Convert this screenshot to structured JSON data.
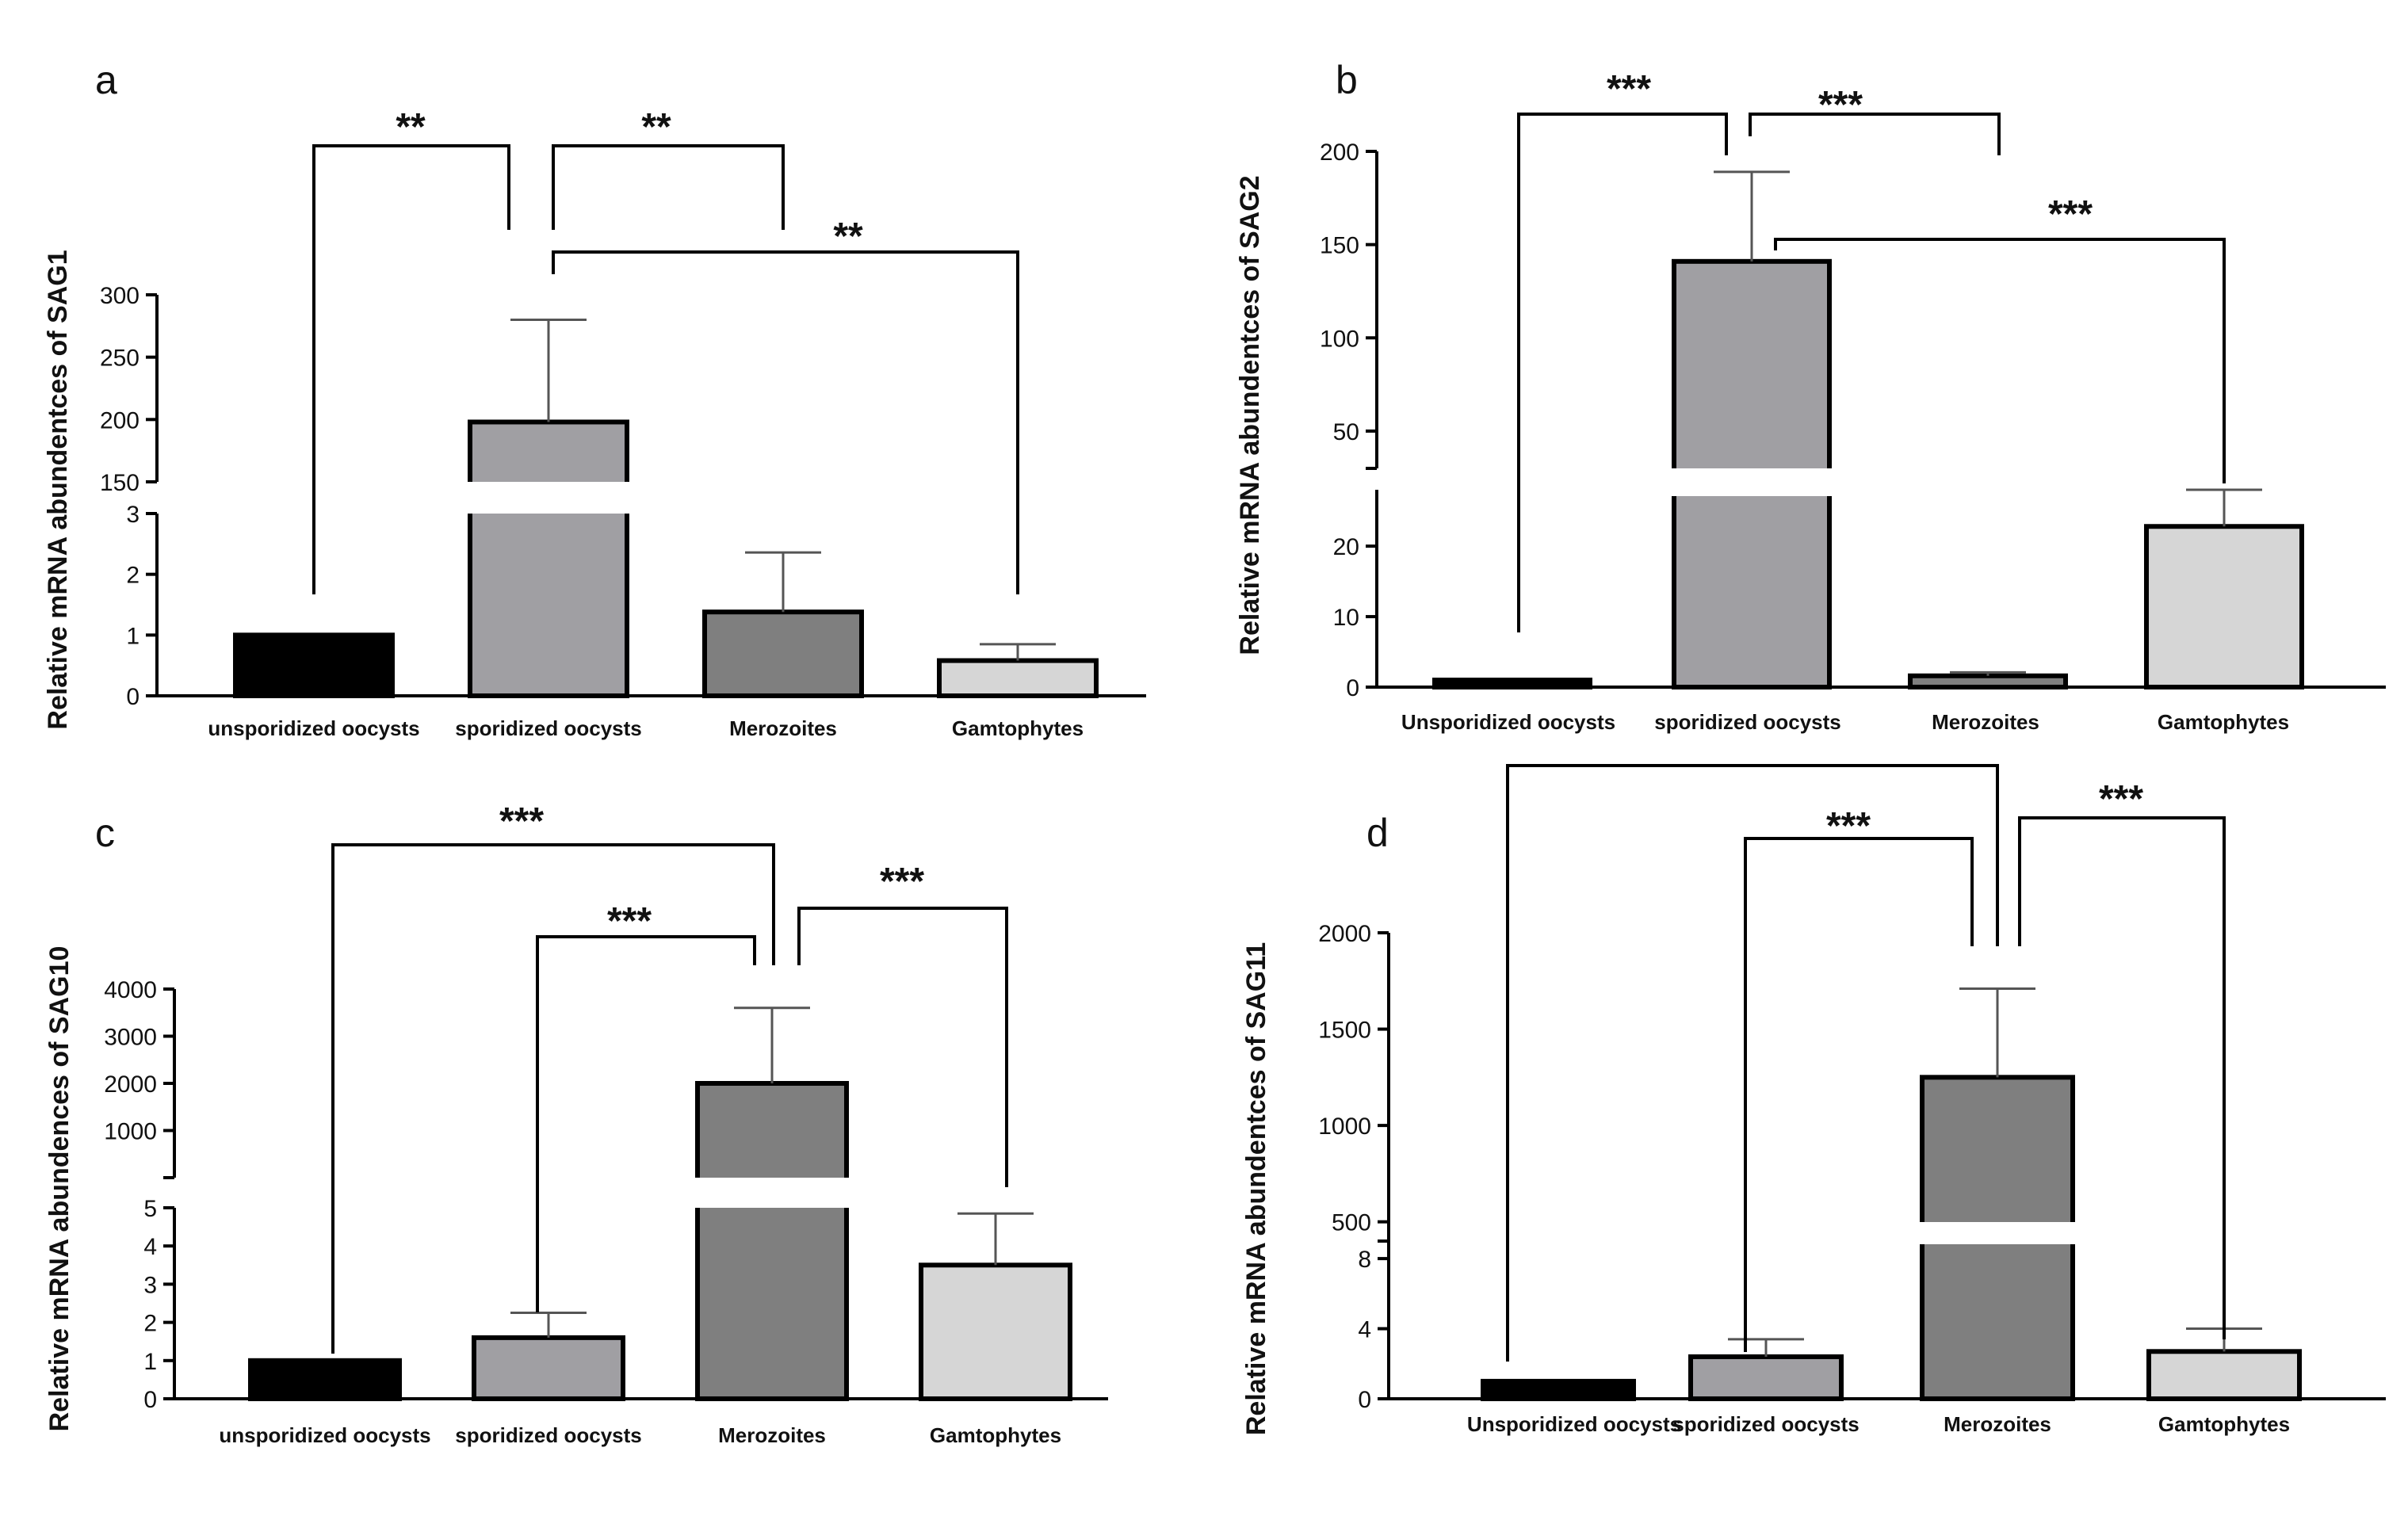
{
  "chart_data": [
    {
      "panel": "a",
      "type": "bar",
      "ylabel": "Relative mRNA abundentces of SAG1",
      "categories": [
        "unsporidized oocysts",
        "sporidized oocysts",
        "Merozoites",
        "Gamtophytes"
      ],
      "values": [
        1.0,
        198,
        1.38,
        0.58
      ],
      "errors": [
        0,
        82,
        0.98,
        0.27
      ],
      "colors": [
        "#000000",
        "#a09fa3",
        "#7f7f7f",
        "#d6d6d6"
      ],
      "axis_segments": [
        {
          "range": [
            0,
            3
          ],
          "ticks": [
            0,
            1,
            2,
            3
          ]
        },
        {
          "range": [
            150,
            300
          ],
          "ticks": [
            150,
            200,
            250,
            300
          ]
        }
      ],
      "significance": [
        {
          "from": 0,
          "to": 1,
          "label": "**"
        },
        {
          "from": 1,
          "to": 2,
          "label": "**"
        },
        {
          "from": 1,
          "to": 3,
          "label": "**"
        }
      ]
    },
    {
      "panel": "b",
      "type": "bar",
      "ylabel": "Relative mRNA abundentces of SAG2",
      "categories": [
        "Unsporidized oocysts",
        "sporidized oocysts",
        "Merozoites",
        "Gamtophytes"
      ],
      "values": [
        1.0,
        141,
        1.6,
        22.8
      ],
      "errors": [
        0,
        48,
        0.5,
        5.2
      ],
      "colors": [
        "#000000",
        "#a09fa3",
        "#7f7f7f",
        "#d6d6d6"
      ],
      "axis_segments": [
        {
          "range": [
            0,
            28
          ],
          "ticks": [
            0,
            10,
            20
          ]
        },
        {
          "range": [
            30,
            200
          ],
          "ticks": [
            50,
            100,
            150,
            200
          ]
        }
      ],
      "significance": [
        {
          "from": 0,
          "to": 1,
          "label": "***"
        },
        {
          "from": 1,
          "to": 2,
          "label": "***"
        },
        {
          "from": 1,
          "to": 3,
          "label": "***"
        }
      ]
    },
    {
      "panel": "c",
      "type": "bar",
      "ylabel": "Relative mRNA abundences of SAG10",
      "categories": [
        "unsporidized oocysts",
        "sporidized oocysts",
        "Merozoites",
        "Gamtophytes"
      ],
      "values": [
        1.0,
        1.6,
        2000,
        3.5
      ],
      "errors": [
        0,
        0.65,
        1600,
        1.35
      ],
      "colors": [
        "#000000",
        "#a09fa3",
        "#7f7f7f",
        "#d6d6d6"
      ],
      "axis_segments": [
        {
          "range": [
            0,
            5
          ],
          "ticks": [
            0,
            1,
            2,
            3,
            4,
            5
          ]
        },
        {
          "range": [
            0,
            4000
          ],
          "ticks": [
            1000,
            2000,
            3000,
            4000
          ]
        }
      ],
      "significance": [
        {
          "from": 0,
          "to": 2,
          "label": "***"
        },
        {
          "from": 1,
          "to": 2,
          "label": "***"
        },
        {
          "from": 2,
          "to": 3,
          "label": "***"
        }
      ]
    },
    {
      "panel": "d",
      "type": "bar",
      "ylabel": "Relative mRNA abundentces of SAG11",
      "categories": [
        "Unsporidized oocysts",
        "sporidized oocysts",
        "Merozoites",
        "Gamtophytes"
      ],
      "values": [
        1.0,
        2.4,
        1250,
        2.7
      ],
      "errors": [
        0,
        1.0,
        460,
        1.3
      ],
      "colors": [
        "#000000",
        "#a09fa3",
        "#7f7f7f",
        "#d6d6d6"
      ],
      "axis_segments": [
        {
          "range": [
            0,
            9
          ],
          "ticks": [
            0,
            4,
            8
          ]
        },
        {
          "range": [
            400,
            2000
          ],
          "ticks": [
            500,
            1000,
            1500,
            2000
          ]
        }
      ],
      "significance": [
        {
          "from": 0,
          "to": 2,
          "label": ""
        },
        {
          "from": 1,
          "to": 2,
          "label": "***"
        },
        {
          "from": 2,
          "to": 3,
          "label": "***"
        }
      ]
    }
  ]
}
